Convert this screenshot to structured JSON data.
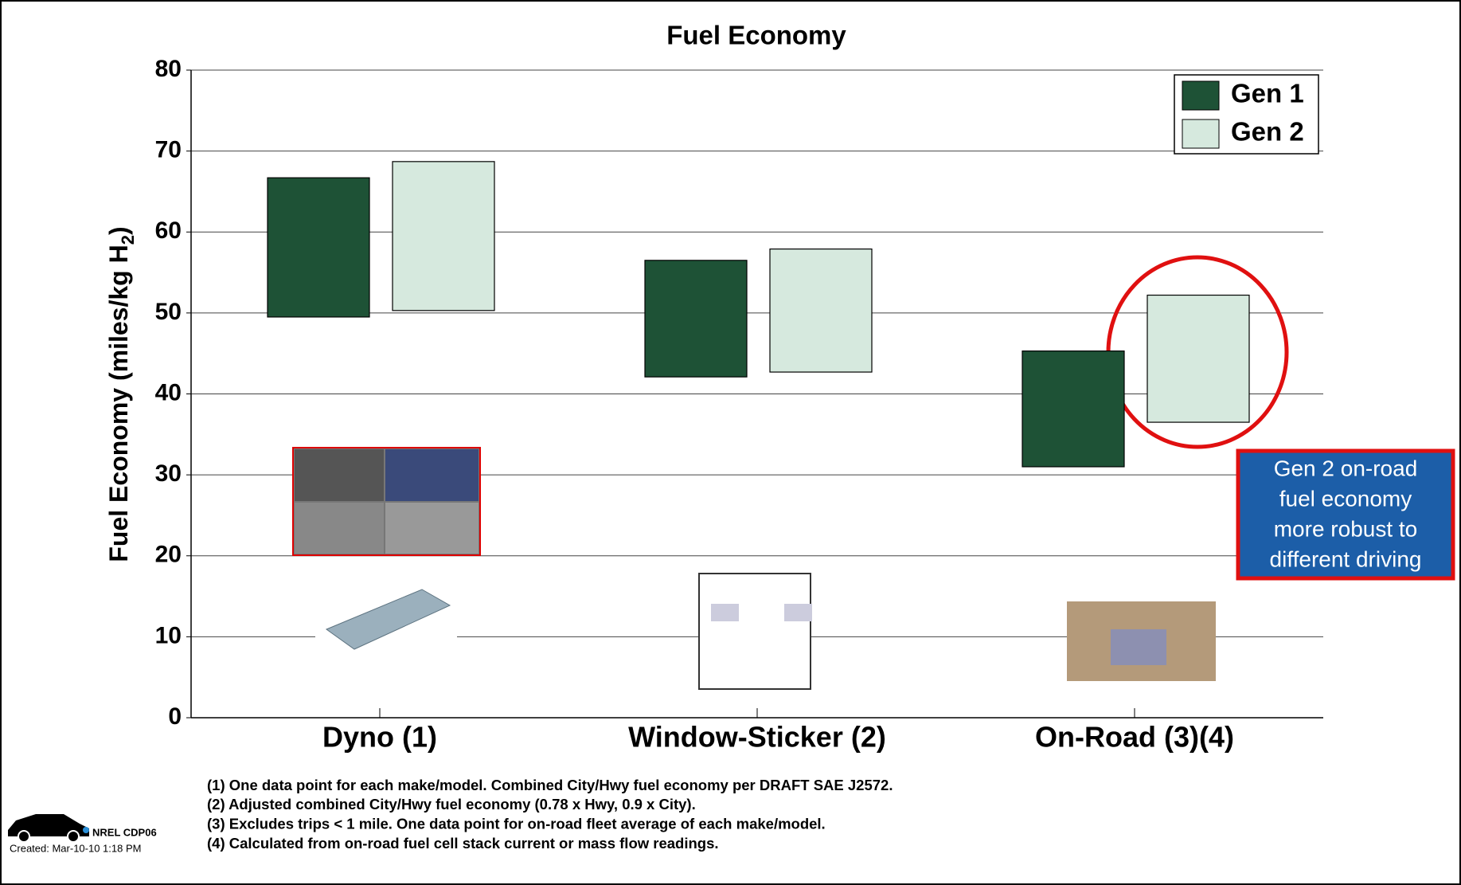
{
  "chart_data": {
    "type": "floating-bar",
    "title": "Fuel Economy",
    "y_label": "Fuel Economy (miles/kg H",
    "y_label_subscript": "2",
    "y_label_end": ")",
    "categories": [
      "Dyno (1)",
      "Window-Sticker (2)",
      "On-Road (3)(4)"
    ],
    "series": [
      {
        "name": "Gen 1",
        "color": "#1e5236",
        "low": [
          49.5,
          42.1,
          31.0
        ],
        "high": [
          66.7,
          56.5,
          45.3
        ]
      },
      {
        "name": "Gen 2",
        "color": "#d6e9de",
        "low": [
          50.3,
          42.7,
          36.5
        ],
        "high": [
          68.7,
          57.9,
          52.2
        ]
      }
    ],
    "ylim": [
      0,
      80
    ],
    "yticks": [
      0,
      10,
      20,
      30,
      40,
      50,
      60,
      70,
      80
    ],
    "grid": true,
    "legend": "top-right",
    "annotation": [
      "Gen 2 on-road",
      "fuel economy",
      "more robust to",
      "different driving"
    ],
    "footnotes": [
      "(1) One data point for each make/model. Combined City/Hwy fuel economy per DRAFT SAE J2572.",
      "(2) Adjusted combined City/Hwy fuel economy (0.78 x Hwy, 0.9 x City).",
      "(3) Excludes trips < 1 mile. One data point for on-road fleet average of each make/model.",
      "(4) Calculated from on-road fuel cell stack current or mass flow readings."
    ],
    "logo_label": "NREL CDP06",
    "created": "Created: Mar-10-10  1:18 PM"
  }
}
